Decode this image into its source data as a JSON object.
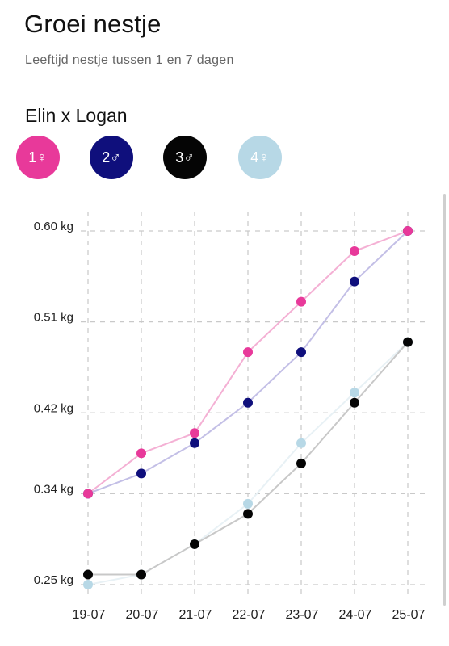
{
  "header": {
    "title": "Groei nestje",
    "subtitle": "Leeftijd nestje tussen 1 en 7 dagen"
  },
  "litter": {
    "name": "Elin x Logan",
    "chips": [
      {
        "label": "1♀",
        "color": "#e8399a"
      },
      {
        "label": "2♂",
        "color": "#0f0f7c"
      },
      {
        "label": "3♂",
        "color": "#050505"
      },
      {
        "label": "4♀",
        "color": "#b7d8e6"
      }
    ]
  },
  "chart_data": {
    "type": "line",
    "x": [
      "19-07",
      "20-07",
      "21-07",
      "22-07",
      "23-07",
      "24-07",
      "25-07"
    ],
    "y_ticks": [
      "0.60 kg",
      "0.51 kg",
      "0.42 kg",
      "0.34 kg",
      "0.25 kg"
    ],
    "y_tick_values": [
      0.6,
      0.51,
      0.42,
      0.34,
      0.25
    ],
    "ylim": [
      0.25,
      0.6
    ],
    "grid": true,
    "series": [
      {
        "name": "1♀",
        "color": "#e8399a",
        "line_color": "#f4b0d4",
        "values": [
          0.34,
          0.38,
          0.4,
          0.48,
          0.53,
          0.58,
          0.6
        ]
      },
      {
        "name": "2♂",
        "color": "#0f0f7c",
        "line_color": "#c3bfe6",
        "values": [
          0.34,
          0.36,
          0.39,
          0.43,
          0.48,
          0.55,
          0.6
        ]
      },
      {
        "name": "3♂",
        "color": "#050505",
        "line_color": "#c8c8c8",
        "values": [
          0.26,
          0.26,
          0.29,
          0.32,
          0.37,
          0.43,
          0.49
        ]
      },
      {
        "name": "4♀",
        "color": "#b7d8e6",
        "line_color": "#e8f1f5",
        "values": [
          0.25,
          0.26,
          0.29,
          0.33,
          0.39,
          0.44,
          0.49
        ]
      }
    ]
  }
}
